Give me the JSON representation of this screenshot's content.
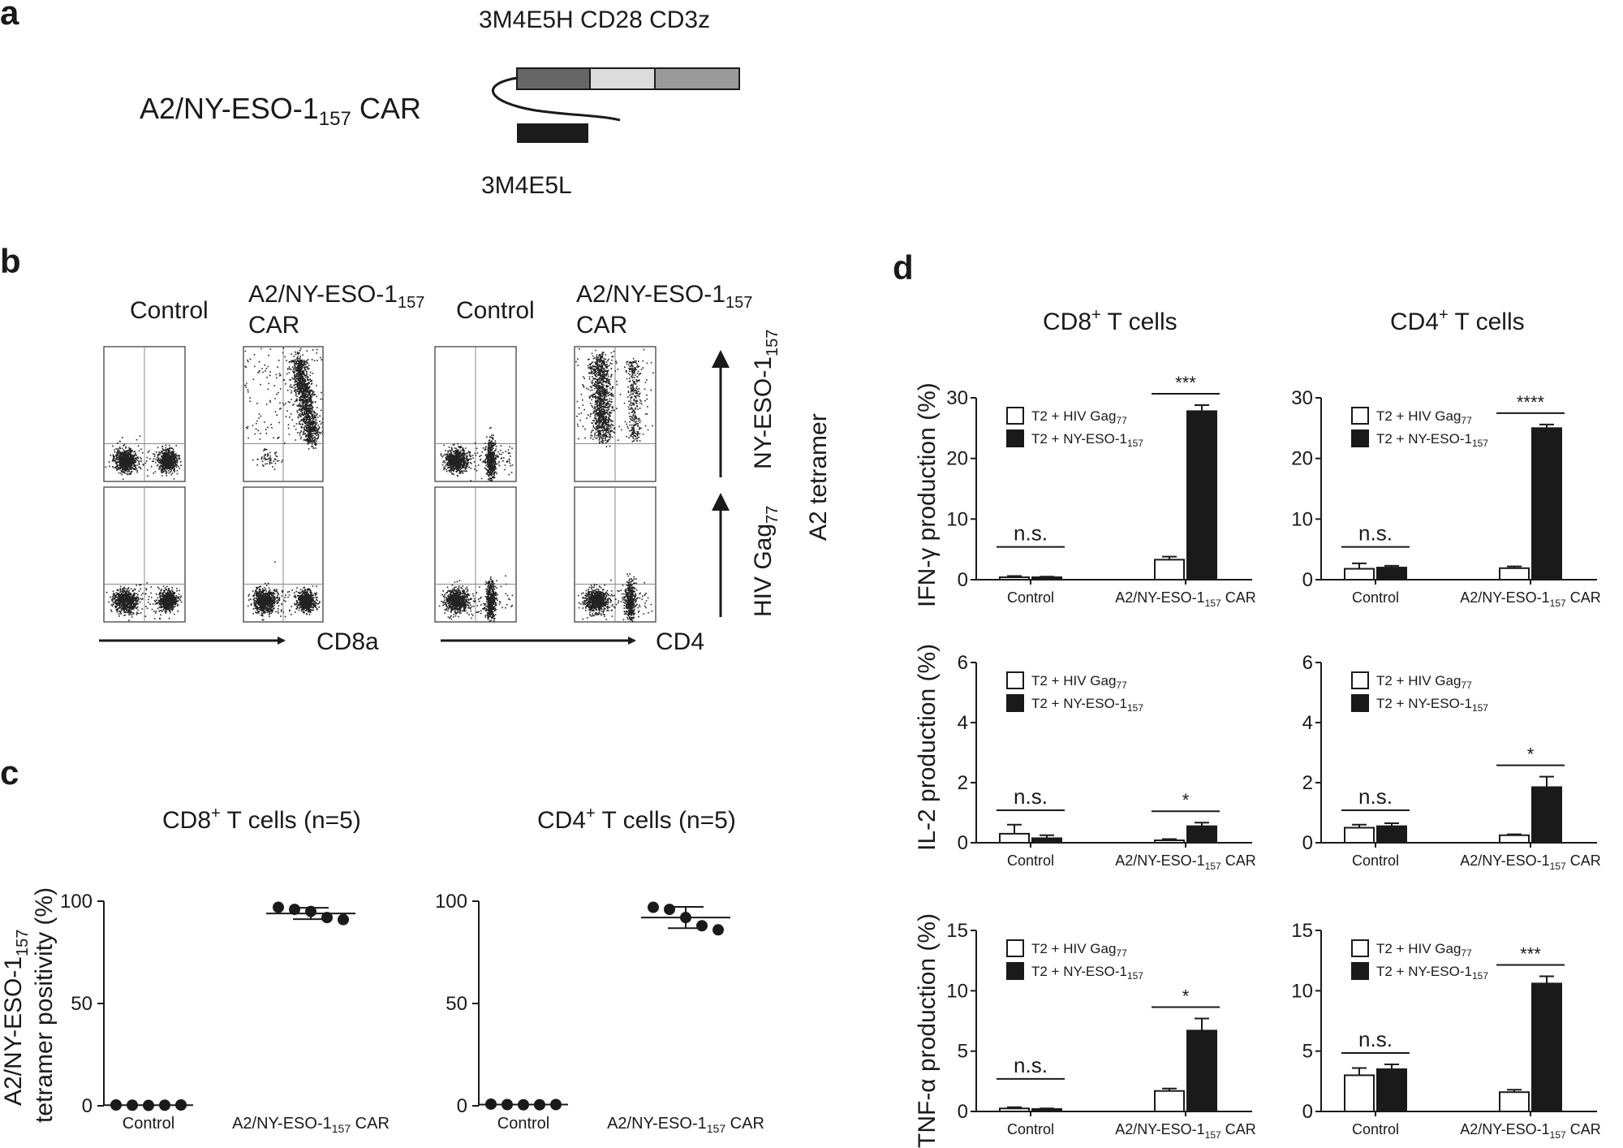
{
  "panels": {
    "a": "a",
    "b": "b",
    "c": "c",
    "d": "d"
  },
  "panel_a": {
    "construct_name": "A2/NY-ESO-1",
    "construct_sub": "157",
    "construct_suffix": " CAR",
    "domains_label": "3M4E5H CD28 CD3z",
    "light_chain_label": "3M4E5L",
    "colors": {
      "heavy": "#666666",
      "cd28": "#dcdcdc",
      "cd3z": "#9a9a9a",
      "light": "#1c1c1c"
    }
  },
  "panel_b": {
    "control_label_1": "Control",
    "car_label_1": "A2/NY-ESO-1",
    "car_label_1_sub": "157",
    "car_label_1_line2": "CAR",
    "control_label_2": "Control",
    "car_label_2": "A2/NY-ESO-1",
    "car_label_2_sub": "157",
    "car_label_2_line2": "CAR",
    "x_axis_left": "CD8a",
    "x_axis_right": "CD4",
    "y_top_label": "NY-ESO-1",
    "y_top_sub": "157",
    "y_bottom_label": "HIV Gag",
    "y_bottom_sub": "77",
    "tetramer_label": "A2 tetramer"
  },
  "panel_c": {
    "ylabel_line1": "A2/NY-ESO-1",
    "ylabel_line1_sub": "157",
    "ylabel_line2": "tetramer positivity (%)"
  },
  "panel_d": {
    "col1_title": "CD8",
    "col1_sup": "+",
    "col1_rest": " T cells",
    "col2_title": "CD4",
    "col2_sup": "+",
    "col2_rest": " T cells",
    "row_labels": [
      "IFN-γ production (%)",
      "IL-2 production (%)",
      "TNF-α production (%)"
    ],
    "legend_1": "T2 + HIV Gag",
    "legend_1_sub": "77",
    "legend_2": "T2 + NY-ESO-1",
    "legend_2_sub": "157"
  },
  "chart_data": [
    {
      "type": "scatter",
      "title": "CD8+ T cells (n=5)",
      "title_main": "CD8",
      "title_sup": "+",
      "title_rest": " T cells (n=5)",
      "categories": [
        "Control",
        "A2/NY-ESO-1157 CAR"
      ],
      "cat_labels": [
        {
          "text": "Control",
          "sub": ""
        },
        {
          "text": "A2/NY-ESO-1",
          "sub": "157",
          "suffix": " CAR"
        }
      ],
      "points": [
        [
          0.4,
          0.3,
          0.2,
          0.3,
          0.4
        ],
        [
          97,
          96,
          95,
          92,
          91
        ]
      ],
      "mean": [
        0.3,
        94
      ],
      "sd": [
        0.1,
        2.8
      ],
      "ylim": [
        0,
        100
      ],
      "yticks": [
        0,
        50,
        100
      ],
      "ylabel": "A2/NY-ESO-1157 tetramer positivity (%)"
    },
    {
      "type": "scatter",
      "title": "CD4+ T cells (n=5)",
      "title_main": "CD4",
      "title_sup": "+",
      "title_rest": " T cells (n=5)",
      "categories": [
        "Control",
        "A2/NY-ESO-1157 CAR"
      ],
      "cat_labels": [
        {
          "text": "Control",
          "sub": ""
        },
        {
          "text": "A2/NY-ESO-1",
          "sub": "157",
          "suffix": " CAR"
        }
      ],
      "points": [
        [
          0.8,
          0.6,
          0.5,
          0.5,
          0.6
        ],
        [
          97,
          96,
          92,
          88,
          86
        ]
      ],
      "mean": [
        0.6,
        92
      ],
      "sd": [
        0.2,
        5.2
      ],
      "ylim": [
        0,
        100
      ],
      "yticks": [
        0,
        50,
        100
      ],
      "ylabel": "A2/NY-ESO-1157 tetramer positivity (%)"
    },
    {
      "type": "bar",
      "cell": "CD8+ T cells",
      "cytokine": "IFN-γ",
      "categories": [
        "Control",
        "A2/NY-ESO-1157 CAR"
      ],
      "series": [
        {
          "name": "T2 + HIV Gag77",
          "values": [
            0.4,
            3.3
          ],
          "err": [
            0.2,
            0.5
          ]
        },
        {
          "name": "T2 + NY-ESO-1157",
          "values": [
            0.4,
            27.8
          ],
          "err": [
            0.1,
            1.0
          ]
        }
      ],
      "sig": [
        "n.s.",
        "***"
      ],
      "ylim": [
        0,
        30
      ],
      "yticks": [
        0,
        10,
        20,
        30
      ]
    },
    {
      "type": "bar",
      "cell": "CD4+ T cells",
      "cytokine": "IFN-γ",
      "categories": [
        "Control",
        "A2/NY-ESO-1157 CAR"
      ],
      "series": [
        {
          "name": "T2 + HIV Gag77",
          "values": [
            1.8,
            1.9
          ],
          "err": [
            0.9,
            0.3
          ]
        },
        {
          "name": "T2 + NY-ESO-1157",
          "values": [
            2.0,
            25.0
          ],
          "err": [
            0.3,
            0.6
          ]
        }
      ],
      "sig": [
        "n.s.",
        "****"
      ],
      "ylim": [
        0,
        30
      ],
      "yticks": [
        0,
        10,
        20,
        30
      ]
    },
    {
      "type": "bar",
      "cell": "CD8+ T cells",
      "cytokine": "IL-2",
      "categories": [
        "Control",
        "A2/NY-ESO-1157 CAR"
      ],
      "series": [
        {
          "name": "T2 + HIV Gag77",
          "values": [
            0.3,
            0.08
          ],
          "err": [
            0.3,
            0.04
          ]
        },
        {
          "name": "T2 + NY-ESO-1157",
          "values": [
            0.15,
            0.55
          ],
          "err": [
            0.1,
            0.12
          ]
        }
      ],
      "sig": [
        "n.s.",
        "*"
      ],
      "ylim": [
        0,
        6
      ],
      "yticks": [
        0,
        2,
        4,
        6
      ]
    },
    {
      "type": "bar",
      "cell": "CD4+ T cells",
      "cytokine": "IL-2",
      "categories": [
        "Control",
        "A2/NY-ESO-1157 CAR"
      ],
      "series": [
        {
          "name": "T2 + HIV Gag77",
          "values": [
            0.5,
            0.25
          ],
          "err": [
            0.1,
            0.03
          ]
        },
        {
          "name": "T2 + NY-ESO-1157",
          "values": [
            0.55,
            1.85
          ],
          "err": [
            0.1,
            0.35
          ]
        }
      ],
      "sig": [
        "n.s.",
        "*"
      ],
      "ylim": [
        0,
        6
      ],
      "yticks": [
        0,
        2,
        4,
        6
      ]
    },
    {
      "type": "bar",
      "cell": "CD8+ T cells",
      "cytokine": "TNF-α",
      "categories": [
        "Control",
        "A2/NY-ESO-1157 CAR"
      ],
      "series": [
        {
          "name": "T2 + HIV Gag77",
          "values": [
            0.25,
            1.7
          ],
          "err": [
            0.1,
            0.2
          ]
        },
        {
          "name": "T2 + NY-ESO-1157",
          "values": [
            0.2,
            6.7
          ],
          "err": [
            0.05,
            1.0
          ]
        }
      ],
      "sig": [
        "n.s.",
        "*"
      ],
      "ylim": [
        0,
        15
      ],
      "yticks": [
        0,
        5,
        10,
        15
      ]
    },
    {
      "type": "bar",
      "cell": "CD4+ T cells",
      "cytokine": "TNF-α",
      "categories": [
        "Control",
        "A2/NY-ESO-1157 CAR"
      ],
      "series": [
        {
          "name": "T2 + HIV Gag77",
          "values": [
            3.0,
            1.6
          ],
          "err": [
            0.6,
            0.2
          ]
        },
        {
          "name": "T2 + NY-ESO-1157",
          "values": [
            3.5,
            10.6
          ],
          "err": [
            0.4,
            0.6
          ]
        }
      ],
      "sig": [
        "n.s.",
        "***"
      ],
      "ylim": [
        0,
        15
      ],
      "yticks": [
        0,
        5,
        10,
        15
      ]
    }
  ]
}
